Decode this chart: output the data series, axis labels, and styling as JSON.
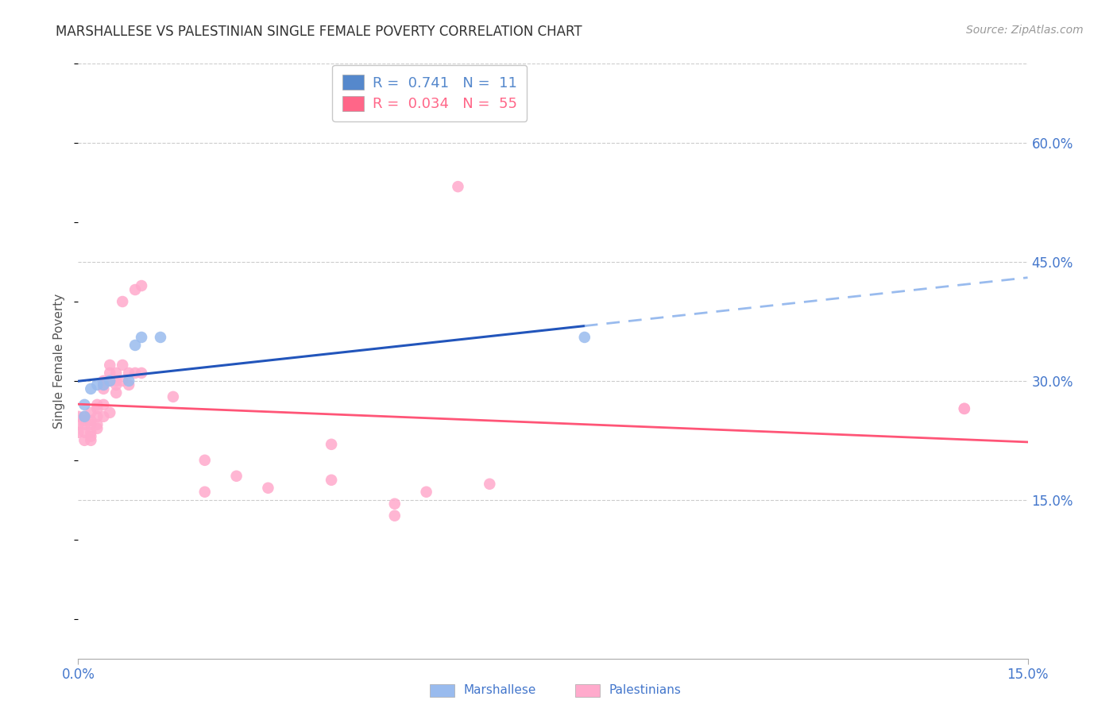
{
  "title": "MARSHALLESE VS PALESTINIAN SINGLE FEMALE POVERTY CORRELATION CHART",
  "source": "Source: ZipAtlas.com",
  "ylabel": "Single Female Poverty",
  "y_ticklabels_right": [
    "15.0%",
    "30.0%",
    "45.0%",
    "60.0%"
  ],
  "y_tick_values": [
    0.15,
    0.3,
    0.45,
    0.6
  ],
  "xlim": [
    0.0,
    0.15
  ],
  "ylim": [
    -0.05,
    0.7
  ],
  "legend_entries": [
    {
      "label": "R =  0.741   N =  11",
      "color": "#5588cc"
    },
    {
      "label": "R =  0.034   N =  55",
      "color": "#ff6688"
    }
  ],
  "marshallese_x": [
    0.001,
    0.001,
    0.002,
    0.003,
    0.004,
    0.005,
    0.008,
    0.009,
    0.01,
    0.013,
    0.08
  ],
  "marshallese_y": [
    0.27,
    0.255,
    0.29,
    0.295,
    0.295,
    0.3,
    0.3,
    0.345,
    0.355,
    0.355,
    0.355
  ],
  "palestinians_x": [
    0.0,
    0.0,
    0.0,
    0.001,
    0.001,
    0.001,
    0.001,
    0.001,
    0.002,
    0.002,
    0.002,
    0.002,
    0.002,
    0.002,
    0.003,
    0.003,
    0.003,
    0.003,
    0.003,
    0.004,
    0.004,
    0.004,
    0.004,
    0.004,
    0.005,
    0.005,
    0.005,
    0.005,
    0.006,
    0.006,
    0.006,
    0.006,
    0.007,
    0.007,
    0.007,
    0.008,
    0.008,
    0.009,
    0.009,
    0.01,
    0.01,
    0.015,
    0.02,
    0.02,
    0.025,
    0.03,
    0.04,
    0.04,
    0.05,
    0.05,
    0.055,
    0.06,
    0.065,
    0.14,
    0.14
  ],
  "palestinians_y": [
    0.255,
    0.245,
    0.235,
    0.255,
    0.25,
    0.245,
    0.235,
    0.225,
    0.26,
    0.25,
    0.245,
    0.235,
    0.23,
    0.225,
    0.27,
    0.265,
    0.255,
    0.245,
    0.24,
    0.3,
    0.295,
    0.29,
    0.27,
    0.255,
    0.32,
    0.31,
    0.3,
    0.26,
    0.31,
    0.3,
    0.295,
    0.285,
    0.4,
    0.32,
    0.3,
    0.31,
    0.295,
    0.415,
    0.31,
    0.42,
    0.31,
    0.28,
    0.2,
    0.16,
    0.18,
    0.165,
    0.22,
    0.175,
    0.145,
    0.13,
    0.16,
    0.545,
    0.17,
    0.265,
    0.265
  ],
  "dot_size": 110,
  "marshallese_color": "#99bbee",
  "palestinians_color": "#ffaacc",
  "marshallese_line_color": "#2255bb",
  "palestinians_line_color": "#ff5577",
  "title_fontsize": 12,
  "source_fontsize": 10,
  "axis_label_color": "#4477cc",
  "background_color": "#ffffff",
  "grid_color": "#cccccc"
}
